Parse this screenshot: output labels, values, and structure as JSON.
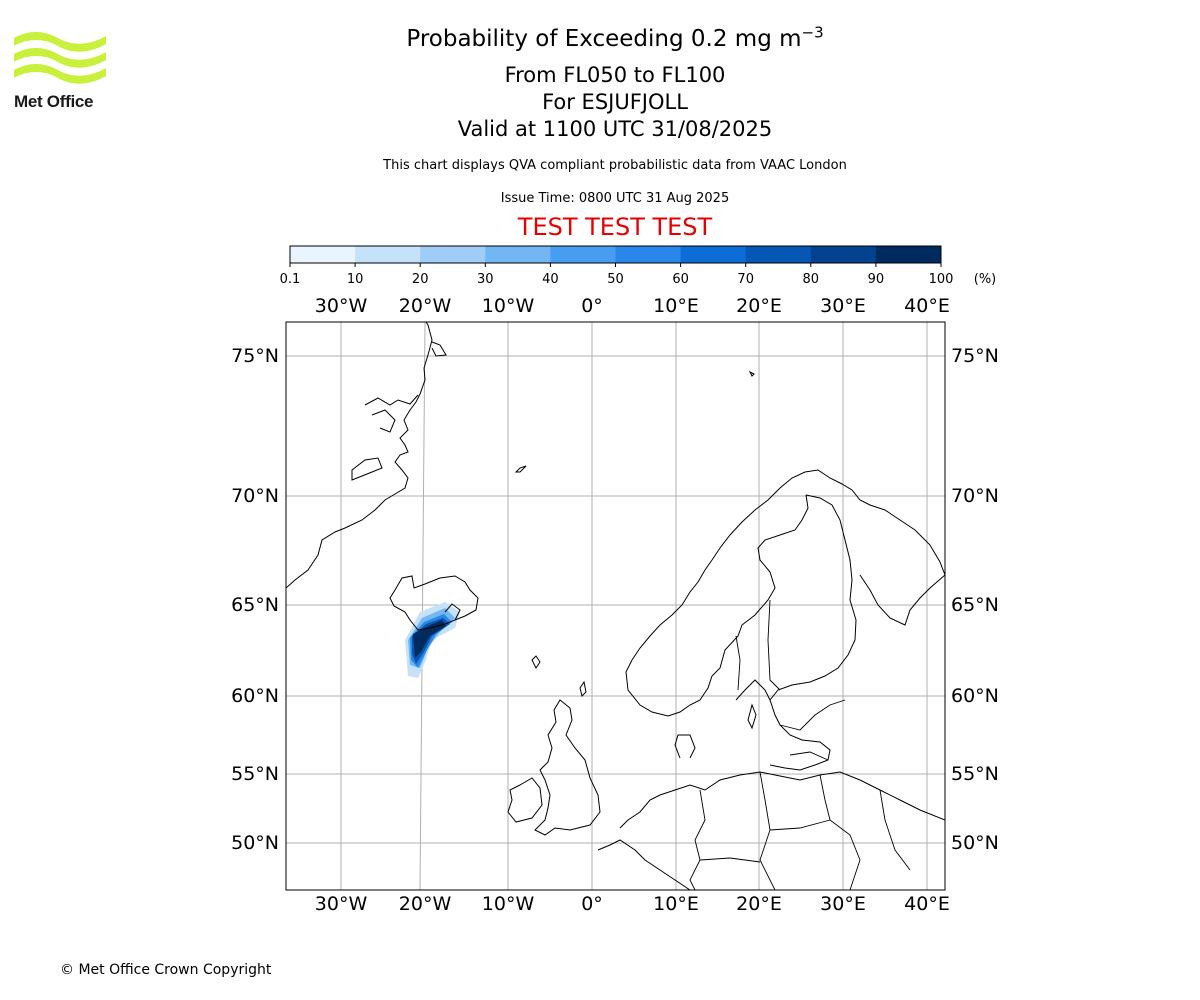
{
  "header": {
    "title_prefix": "Probability of Exceeding 0.2 mg m",
    "title_exp": "−3",
    "levels": "From FL050 to FL100",
    "volcano": "For ESJUFJOLL",
    "valid": "Valid at 1100 UTC 31/08/2025",
    "note": "This chart displays QVA compliant probabilistic data from VAAC London",
    "issue_time": "Issue Time: 0800 UTC 31 Aug 2025",
    "warning": "TEST TEST TEST"
  },
  "logo": {
    "text": "Met Office",
    "color": "#c8f03c"
  },
  "colorbar": {
    "ticks": [
      "0.1",
      "10",
      "20",
      "30",
      "40",
      "50",
      "60",
      "70",
      "80",
      "90",
      "100"
    ],
    "unit": "(%)",
    "colors": [
      "#eaf4ff",
      "#c6e2fb",
      "#9fcdf7",
      "#72b6f3",
      "#479ef0",
      "#2887e8",
      "#0d6dd6",
      "#0656b3",
      "#03428e",
      "#012a5e"
    ]
  },
  "map": {
    "lon_labels_top": [
      "30°W",
      "20°W",
      "10°W",
      "0°",
      "10°E",
      "20°E",
      "30°E",
      "40°E"
    ],
    "lon_labels_bottom": [
      "30°W",
      "20°W",
      "10°W",
      "0°",
      "10°E",
      "20°E",
      "30°E",
      "40°E"
    ],
    "lat_labels_left": [
      "75°N",
      "70°N",
      "65°N",
      "60°N",
      "55°N",
      "50°N"
    ],
    "lat_labels_right": [
      "75°N",
      "70°N",
      "65°N",
      "60°N",
      "55°N",
      "50°N"
    ],
    "lon_values": [
      -30,
      -20,
      -10,
      0,
      10,
      20,
      30,
      40
    ],
    "lat_values": [
      75,
      70,
      65,
      60,
      55,
      50
    ],
    "grid": true,
    "projection": "polar-stereographic-like",
    "coastline_color": "#000000",
    "plume_region": "south-east Iceland, extending south-west over the Atlantic"
  },
  "footer": {
    "copyright": "© Met Office Crown Copyright"
  }
}
